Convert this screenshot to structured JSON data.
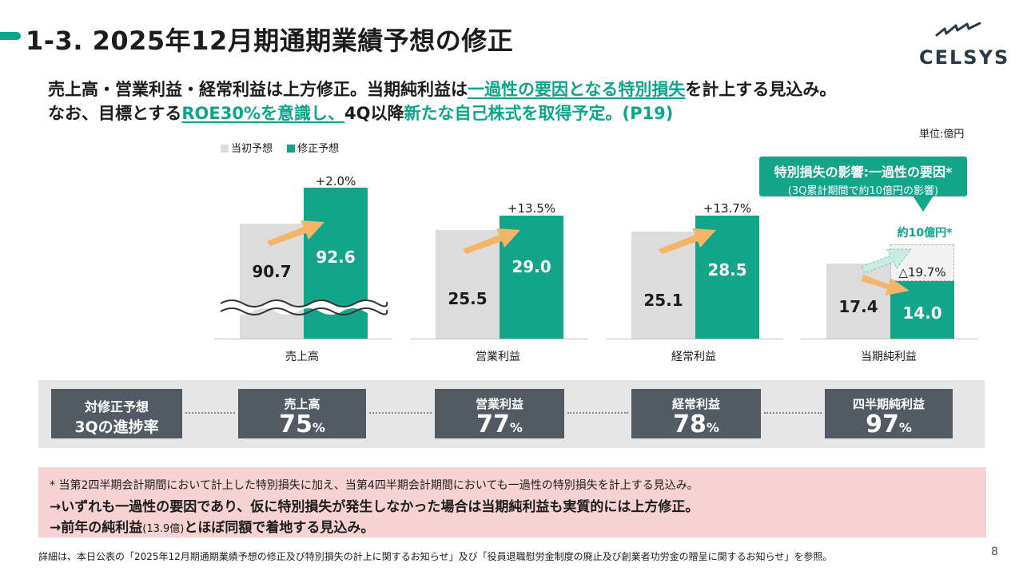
{
  "header": {
    "title": "1-3. 2025年12月期通期業績予想の修正",
    "logo_text": "CELSYS"
  },
  "lead": {
    "line1_a": "売上高・営業利益・経常利益は上方修正。当期純利益は",
    "line1_b": "一過性の要因となる特別損失",
    "line1_c": "を計上する見込み。",
    "line2_a": "なお、目標とする",
    "line2_b": "ROE30%を意識し、",
    "line2_c": "4Q以降",
    "line2_d": "新たな自己株式を取得予定。(P19)"
  },
  "unit_label": "単位:億円",
  "legend": {
    "initial": "当初予想",
    "revised": "修正予想"
  },
  "callout": {
    "line1": "特別損失の影響:一過性の要因*",
    "line2": "(3Q累計期間で約10億円の影響)",
    "amount": "約10億円*"
  },
  "colors": {
    "accent": "#12a58a",
    "initial": "#dcdcdc",
    "arrow": "#f5b569",
    "box": "#525b63",
    "note_bg": "#f6d2d2"
  },
  "chart_data": {
    "type": "bar",
    "categories": [
      "売上高",
      "営業利益",
      "経常利益",
      "当期純利益"
    ],
    "series": [
      {
        "name": "当初予想",
        "values": [
          90.7,
          25.5,
          25.1,
          17.4
        ],
        "labels": [
          "90.7",
          "25.5",
          "25.1",
          "17.4"
        ]
      },
      {
        "name": "修正予想",
        "values": [
          92.6,
          29.0,
          28.5,
          14.0
        ],
        "labels": [
          "92.6",
          "29.0",
          "28.5",
          "14.0"
        ]
      }
    ],
    "changes": [
      "+2.0%",
      "+13.5%",
      "+13.7%",
      "△19.7%"
    ],
    "axis_break_on_first": true,
    "unit": "億円"
  },
  "progress": {
    "label_line1": "対修正予想",
    "label_line2": "3Qの進捗率",
    "items": [
      {
        "label": "売上高",
        "value": "75",
        "unit": "%"
      },
      {
        "label": "営業利益",
        "value": "77",
        "unit": "%"
      },
      {
        "label": "経常利益",
        "value": "78",
        "unit": "%"
      },
      {
        "label": "四半期純利益",
        "value": "97",
        "unit": "%"
      }
    ]
  },
  "note": {
    "line1": "* 当第2四半期会計期間において計上した特別損失に加え、当第4四半期会計期間においても一過性の特別損失を計上する見込み。",
    "line2": "→いずれも一過性の要因であり、仮に特別損失が発生しなかった場合は当期純利益も実質的には上方修正。",
    "line3_a": "→前年の純利益",
    "line3_b": "(13.9億)",
    "line3_c": "とほぼ同額で着地する見込み。"
  },
  "footer": {
    "text": "詳細は、本日公表の「2025年12月期通期業績予想の修正及び特別損失の計上に関するお知らせ」及び「役員退職慰労金制度の廃止及び創業者功労金の贈呈に関するお知らせ」を参照。",
    "page": "8"
  }
}
